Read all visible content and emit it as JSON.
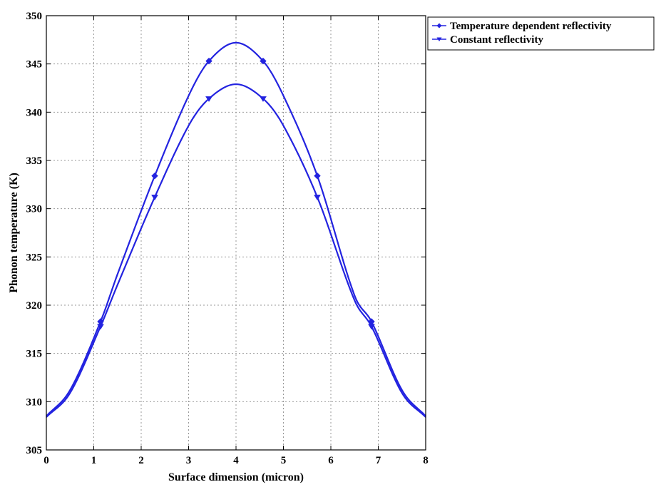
{
  "chart_data": {
    "type": "line",
    "xlabel": "Surface dimension (micron)",
    "ylabel": "Phonon temperature (K)",
    "xlim": [
      0,
      8
    ],
    "ylim": [
      305,
      350
    ],
    "xticks": [
      0,
      1,
      2,
      3,
      4,
      5,
      6,
      7,
      8
    ],
    "yticks": [
      305,
      310,
      315,
      320,
      325,
      330,
      335,
      340,
      345,
      350
    ],
    "grid": true,
    "legend_position": "outside-top-right",
    "series": [
      {
        "name": "Temperature dependent reflectivity",
        "color": "#2323e0",
        "marker": "diamond",
        "x": [
          0,
          0.5,
          1.143,
          1.5,
          2.286,
          3.0,
          3.429,
          4.0,
          4.571,
          5.0,
          5.714,
          6.5,
          6.857,
          7.5,
          8.0
        ],
        "y": [
          308.5,
          311.2,
          318.3,
          323.2,
          333.4,
          341.7,
          345.3,
          347.2,
          345.3,
          341.7,
          333.4,
          321.0,
          318.3,
          311.2,
          308.5
        ],
        "marker_x": [
          1.143,
          2.286,
          3.429,
          4.571,
          5.714,
          6.857
        ]
      },
      {
        "name": "Constant reflectivity",
        "color": "#2323e0",
        "marker": "triangle-down",
        "x": [
          0,
          0.5,
          1.143,
          1.5,
          2.286,
          3.0,
          3.429,
          4.0,
          4.571,
          5.0,
          5.714,
          6.5,
          6.857,
          7.5,
          8.0
        ],
        "y": [
          308.4,
          310.9,
          317.8,
          322.1,
          331.2,
          338.6,
          341.4,
          342.9,
          341.4,
          338.6,
          331.2,
          320.5,
          317.8,
          310.9,
          308.4
        ],
        "marker_x": [
          1.143,
          2.286,
          3.429,
          4.571,
          5.714,
          6.857
        ]
      }
    ]
  }
}
